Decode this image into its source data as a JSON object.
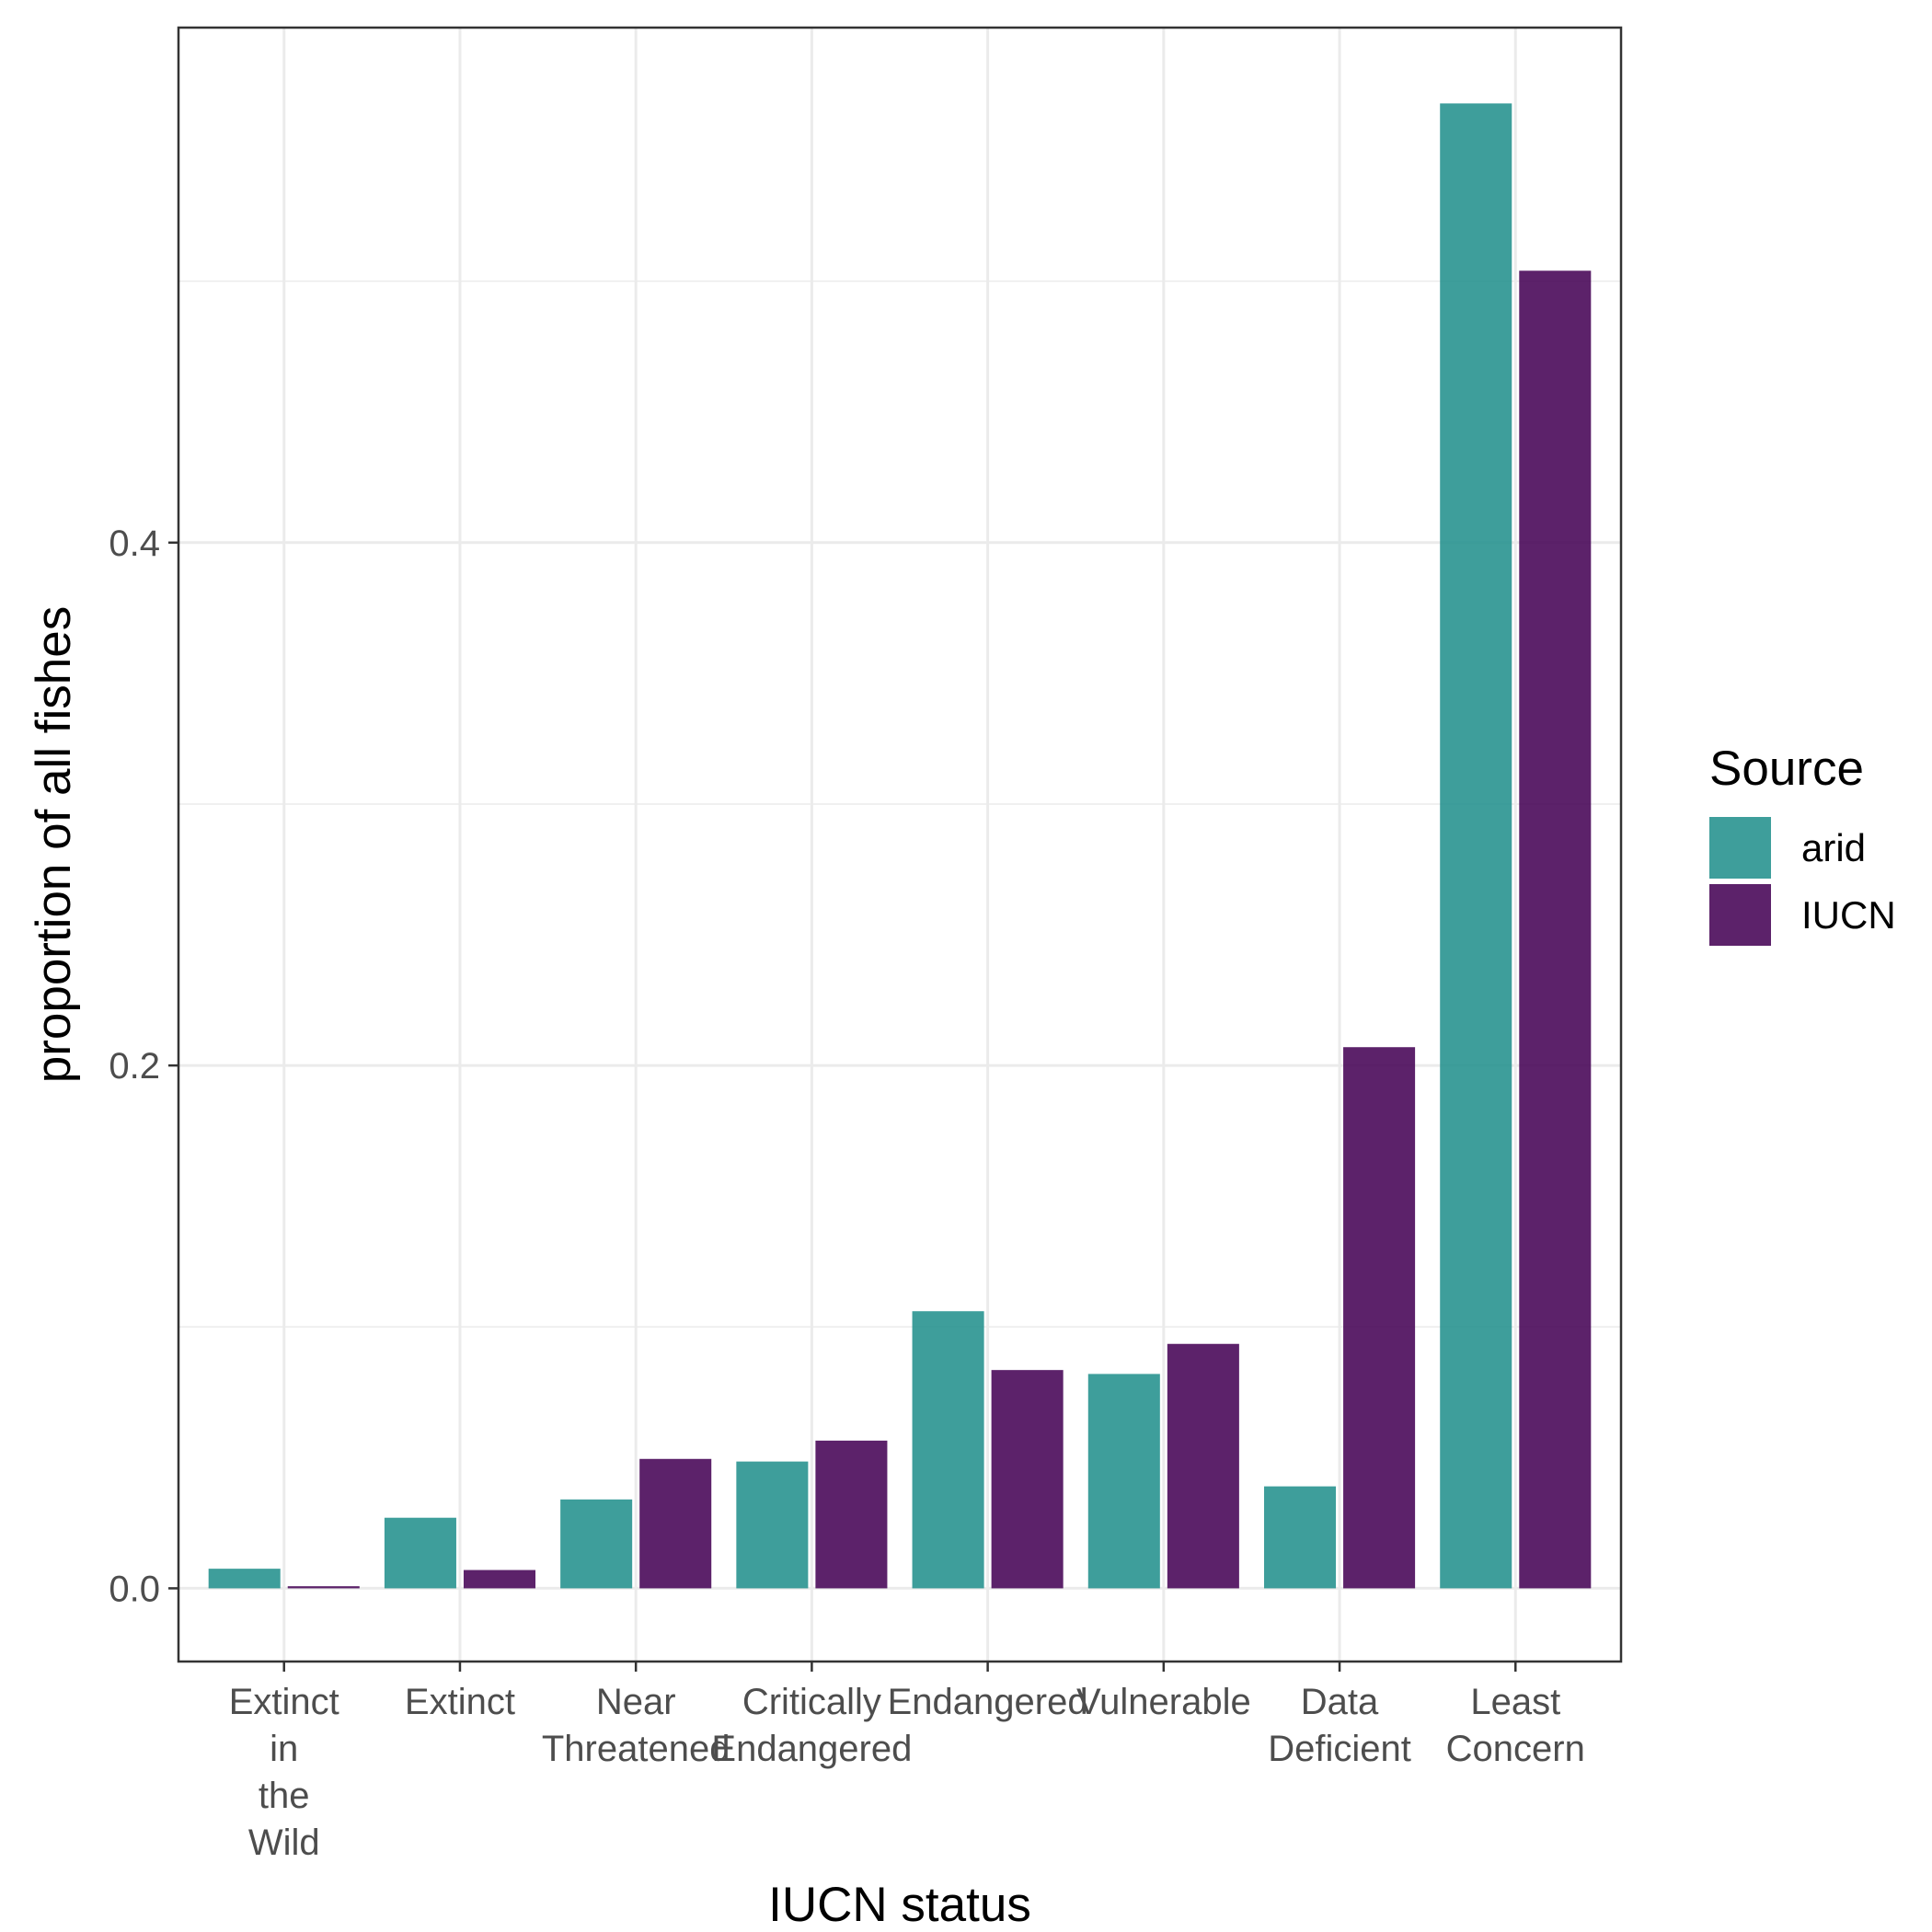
{
  "chart_data": {
    "type": "bar",
    "xlabel": "IUCN status",
    "ylabel": "proportion of all fishes",
    "ylim": [
      -0.028,
      0.597
    ],
    "yticks": [
      0.0,
      0.2,
      0.4
    ],
    "ytick_labels": [
      "0.0",
      "0.2",
      "0.4"
    ],
    "grid": true,
    "legend_position": "right",
    "categories": [
      [
        "Extinct",
        "in",
        "the",
        "Wild"
      ],
      [
        "Extinct"
      ],
      [
        "Near",
        "Threatened"
      ],
      [
        "Critically",
        "Endangered"
      ],
      [
        "Endangered"
      ],
      [
        "Vulnerable"
      ],
      [
        "Data",
        "Deficient"
      ],
      [
        "Least",
        "Concern"
      ]
    ],
    "series": [
      {
        "name": "arid",
        "color": "#21908C",
        "values": [
          0.0075,
          0.027,
          0.034,
          0.0485,
          0.106,
          0.082,
          0.039,
          0.568
        ]
      },
      {
        "name": "IUCN",
        "color": "#440154",
        "values": [
          0.0008,
          0.007,
          0.0495,
          0.0565,
          0.0835,
          0.0935,
          0.207,
          0.504
        ]
      }
    ],
    "legend": {
      "title": "Source",
      "entries": [
        "arid",
        "IUCN"
      ]
    }
  }
}
